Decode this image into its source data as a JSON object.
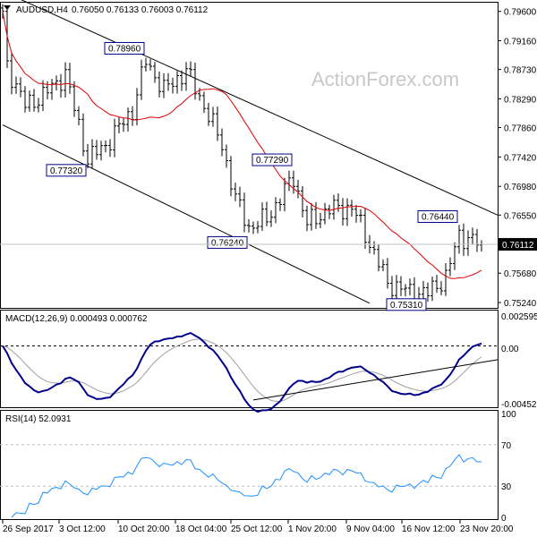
{
  "header": {
    "symbol": "AUDUSD,H4",
    "ohlc": "0.76050 0.76133 0.76003 0.76112"
  },
  "watermark": "ActionForex.com",
  "colors": {
    "bars": "#000000",
    "ma": "#e00000",
    "macd": "#00008b",
    "signal": "#a0a0a0",
    "rsi": "#1e90ff",
    "label_border": "#00008b"
  },
  "chart_data": [
    {
      "type": "line",
      "title": "AUDUSD,H4",
      "series_note": "OHLC bars with moving average",
      "x_ticks": [
        "26 Sep 2017",
        "3 Oct 12:00",
        "10 Oct 20:00",
        "18 Oct 04:00",
        "25 Oct 12:00",
        "1 Nov 20:00",
        "9 Nov 04:00",
        "16 Nov 12:00",
        "23 Nov 20:00"
      ],
      "x_tick_bars": [
        0,
        13,
        27,
        41,
        56,
        69,
        82,
        96,
        108
      ],
      "y_ticks": [
        "0.79600",
        "0.79160",
        "0.78730",
        "0.78290",
        "0.77860",
        "0.77420",
        "0.76980",
        "0.76550",
        "0.75680",
        "0.75240"
      ],
      "ylim": [
        0.7516,
        0.7973
      ],
      "current_price": "0.76112",
      "close_keypoints": [
        [
          0,
          0.796
        ],
        [
          1,
          0.7879
        ],
        [
          5,
          0.7819
        ],
        [
          9,
          0.7834
        ],
        [
          14,
          0.7866
        ],
        [
          19,
          0.7738
        ],
        [
          23,
          0.776
        ],
        [
          29,
          0.7812
        ],
        [
          32,
          0.7886
        ],
        [
          36,
          0.7842
        ],
        [
          41,
          0.7871
        ],
        [
          45,
          0.7819
        ],
        [
          49,
          0.776
        ],
        [
          52,
          0.7679
        ],
        [
          55,
          0.7637
        ],
        [
          59,
          0.7649
        ],
        [
          65,
          0.7712
        ],
        [
          68,
          0.7642
        ],
        [
          73,
          0.7664
        ],
        [
          78,
          0.7666
        ],
        [
          81,
          0.7627
        ],
        [
          86,
          0.7553
        ],
        [
          91,
          0.754
        ],
        [
          95,
          0.7538
        ],
        [
          99,
          0.7562
        ],
        [
          102,
          0.7625
        ],
        [
          105,
          0.7617
        ],
        [
          107,
          0.7611
        ]
      ],
      "annotations": [
        {
          "text": "0.78960",
          "bar": 32
        },
        {
          "text": "0.77320",
          "bar": 19
        },
        {
          "text": "0.77290",
          "bar": 65
        },
        {
          "text": "0.76240",
          "bar": 55
        },
        {
          "text": "0.76440",
          "bar": 102
        },
        {
          "text": "0.75310",
          "bar": 95
        }
      ],
      "trendlines": [
        {
          "name": "upper-channel",
          "from": [
            0,
            0.799
          ],
          "to": [
            111,
            0.7655
          ]
        },
        {
          "name": "lower-channel",
          "from": [
            0,
            0.779
          ],
          "to": [
            82,
            0.7523
          ]
        }
      ]
    },
    {
      "type": "line",
      "title": "MACD(12,26,9) 0.000493 0.000762",
      "y_ticks": [
        "0.002595",
        "0.00",
        "-0.004522"
      ],
      "ylim": [
        -0.004522,
        0.002595
      ],
      "trendline": {
        "from": [
          56,
          -0.0043
        ],
        "to": [
          111,
          -0.0011
        ]
      }
    },
    {
      "type": "line",
      "title": "RSI(14) 52.0931",
      "y_ticks": [
        "100",
        "70",
        "30",
        "0"
      ],
      "ylim": [
        0,
        100
      ],
      "levels": [
        70,
        30
      ]
    }
  ]
}
